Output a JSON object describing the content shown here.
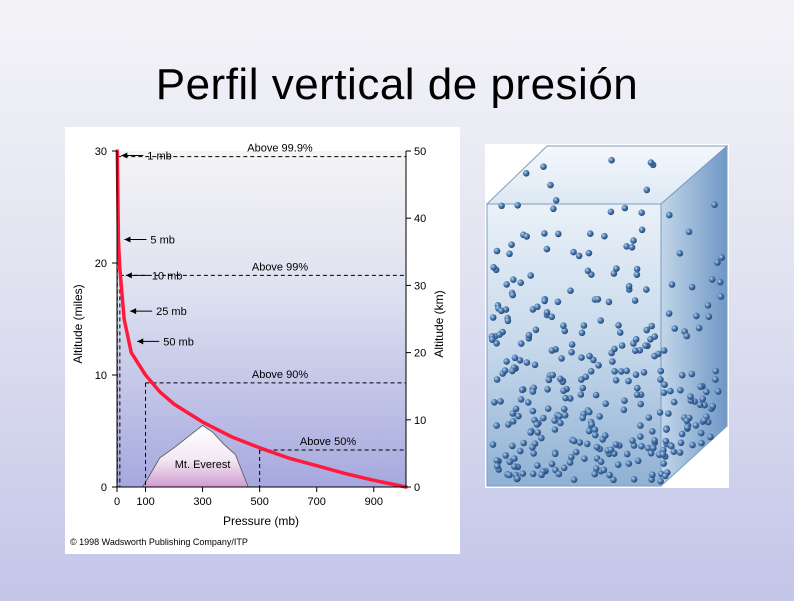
{
  "slide": {
    "title": "Perfil vertical de presión"
  },
  "copyright": "© 1998 Wadsworth Publishing Company/ITP",
  "chart_data": {
    "type": "line",
    "xlabel": "Pressure (mb)",
    "ylabel": "Altitude (miles)",
    "y2label": "Altitude (km)",
    "xlim": [
      0,
      1013
    ],
    "ylim": [
      0,
      30
    ],
    "y2lim": [
      0,
      50
    ],
    "x_ticks": [
      0,
      100,
      300,
      500,
      700,
      900
    ],
    "y_ticks": [
      0,
      10,
      20,
      30
    ],
    "y2_ticks": [
      0,
      10,
      20,
      30,
      40,
      50
    ],
    "series": [
      {
        "color": "#ff1a3c",
        "x": [
          1,
          5,
          10,
          25,
          50,
          100,
          150,
          200,
          300,
          400,
          500,
          600,
          700,
          800,
          900,
          1013
        ],
        "y": [
          30,
          22,
          19.5,
          15,
          12,
          10,
          8.5,
          7.4,
          5.8,
          4.5,
          3.5,
          2.6,
          1.9,
          1.2,
          0.6,
          0
        ]
      }
    ],
    "pressure_labels": [
      {
        "text": "1 mb",
        "x": 1,
        "y": 29.6
      },
      {
        "text": "5 mb",
        "x": 5,
        "y": 22.1
      },
      {
        "text": "10 mb",
        "x": 10,
        "y": 18.9
      },
      {
        "text": "25 mb",
        "x": 25,
        "y": 15.7
      },
      {
        "text": "50 mb",
        "x": 50,
        "y": 13.0
      }
    ],
    "levels": [
      {
        "label": "Above 99.9%",
        "altitude": 29.5,
        "pressure": 1
      },
      {
        "label": "Above 99%",
        "altitude": 18.9,
        "pressure": 10
      },
      {
        "label": "Above 90%",
        "altitude": 9.3,
        "pressure": 100
      },
      {
        "label": "Above 50%",
        "altitude": 3.3,
        "pressure": 500
      }
    ],
    "annotations": [
      {
        "text": "Mt. Everest",
        "x": 300,
        "altitude_miles": 5.5
      }
    ]
  },
  "illustration": {
    "subject": "molecule-density-box"
  }
}
